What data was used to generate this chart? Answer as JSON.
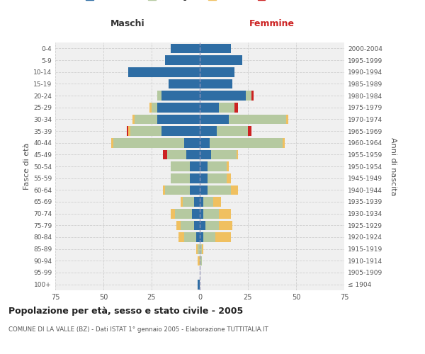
{
  "age_groups": [
    "100+",
    "95-99",
    "90-94",
    "85-89",
    "80-84",
    "75-79",
    "70-74",
    "65-69",
    "60-64",
    "55-59",
    "50-54",
    "45-49",
    "40-44",
    "35-39",
    "30-34",
    "25-29",
    "20-24",
    "15-19",
    "10-14",
    "5-9",
    "0-4"
  ],
  "birth_years": [
    "≤ 1904",
    "1905-1909",
    "1910-1914",
    "1915-1919",
    "1920-1924",
    "1925-1929",
    "1930-1934",
    "1935-1939",
    "1940-1944",
    "1945-1949",
    "1950-1954",
    "1955-1959",
    "1960-1964",
    "1965-1969",
    "1970-1974",
    "1975-1979",
    "1980-1984",
    "1985-1989",
    "1990-1994",
    "1995-1999",
    "2000-2004"
  ],
  "maschi": {
    "celibi": [
      1,
      0,
      0,
      0,
      2,
      3,
      4,
      3,
      5,
      5,
      5,
      7,
      8,
      20,
      22,
      22,
      20,
      16,
      37,
      18,
      15
    ],
    "coniugati": [
      0,
      0,
      0,
      1,
      6,
      7,
      9,
      6,
      13,
      10,
      10,
      10,
      37,
      16,
      12,
      3,
      2,
      0,
      0,
      0,
      0
    ],
    "vedovi": [
      0,
      0,
      1,
      1,
      3,
      2,
      2,
      1,
      1,
      0,
      0,
      0,
      1,
      1,
      1,
      1,
      0,
      0,
      0,
      0,
      0
    ],
    "divorziati": [
      0,
      0,
      0,
      0,
      0,
      0,
      0,
      0,
      0,
      0,
      0,
      2,
      0,
      1,
      0,
      0,
      0,
      0,
      0,
      0,
      0
    ]
  },
  "femmine": {
    "nubili": [
      0,
      0,
      0,
      0,
      2,
      3,
      2,
      2,
      4,
      4,
      4,
      6,
      5,
      9,
      15,
      10,
      24,
      17,
      18,
      22,
      16
    ],
    "coniugate": [
      0,
      0,
      1,
      1,
      6,
      7,
      8,
      5,
      12,
      10,
      10,
      13,
      38,
      16,
      30,
      8,
      3,
      0,
      0,
      0,
      0
    ],
    "vedove": [
      0,
      0,
      0,
      1,
      8,
      7,
      6,
      4,
      4,
      2,
      1,
      1,
      1,
      0,
      1,
      0,
      0,
      0,
      0,
      0,
      0
    ],
    "divorziate": [
      0,
      0,
      0,
      0,
      0,
      0,
      0,
      0,
      0,
      0,
      0,
      0,
      0,
      2,
      0,
      2,
      1,
      0,
      0,
      0,
      0
    ]
  },
  "colors": {
    "celibi": "#2e6da4",
    "coniugati": "#b5c9a0",
    "vedovi": "#f0c060",
    "divorziati": "#cc2222"
  },
  "xlim": 75,
  "title": "Popolazione per età, sesso e stato civile - 2005",
  "subtitle": "COMUNE DI LA VALLE (BZ) - Dati ISTAT 1° gennaio 2005 - Elaborazione TUTTITALIA.IT",
  "ylabel_left": "Fasce di età",
  "ylabel_right": "Anni di nascita",
  "xlabel_maschi": "Maschi",
  "xlabel_femmine": "Femmine",
  "bg_color": "#f0f0f0",
  "grid_color": "#cccccc"
}
